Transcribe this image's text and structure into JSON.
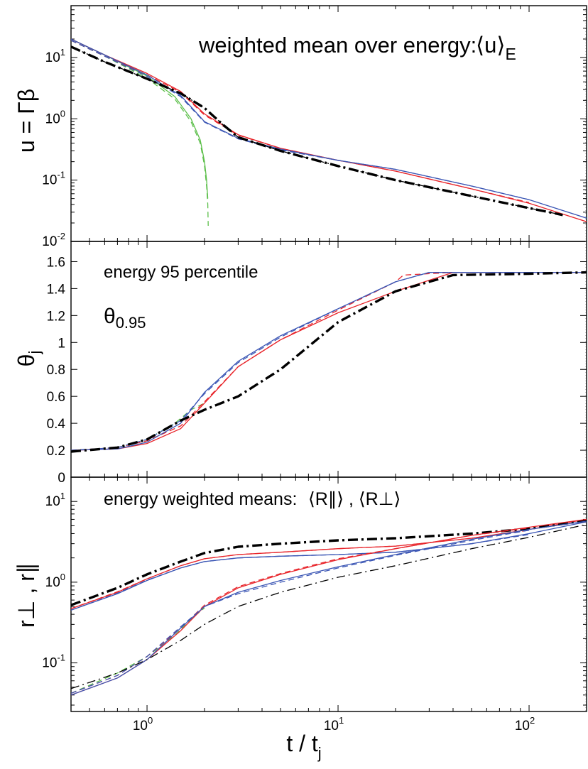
{
  "figure": {
    "xlabel": "t / t",
    "xlabel_sub": "j"
  },
  "chart_data": [
    {
      "type": "line",
      "panel": "top",
      "title": "weighted mean over energy:",
      "annotation_main": "⟨u⟩",
      "annotation_sub": "E",
      "ylabel": "u = Γβ",
      "xscale": "log",
      "yscale": "log",
      "xlim": [
        0.4,
        200
      ],
      "ylim": [
        0.01,
        70
      ],
      "xticks": [
        "10^0",
        "10^1",
        "10^2"
      ],
      "yticks": [
        "10^-2",
        "10^-1",
        "10^0",
        "10^1"
      ],
      "colors": {
        "red": "#e8242a",
        "blue": "#3a55b4",
        "green": "#5cbf4a",
        "black": "#000000"
      },
      "series": [
        {
          "color": "green",
          "dash": "solid",
          "x": [
            0.4,
            0.6,
            1.0,
            1.4,
            1.7,
            1.9,
            2.0,
            2.05,
            2.08
          ],
          "y": [
            20,
            11,
            5.0,
            2.3,
            1.0,
            0.45,
            0.2,
            0.1,
            0.05
          ]
        },
        {
          "color": "green",
          "dash": "dashed",
          "x": [
            0.4,
            0.6,
            1.0,
            1.4,
            1.7,
            1.9,
            2.0,
            2.05,
            2.08,
            2.09
          ],
          "y": [
            19,
            10.5,
            4.6,
            2.1,
            0.9,
            0.4,
            0.17,
            0.08,
            0.04,
            0.018
          ]
        },
        {
          "color": "red",
          "dash": "solid",
          "x": [
            0.4,
            0.6,
            1.0,
            1.5,
            2.0,
            3.0,
            5.0,
            10,
            20,
            50,
            100,
            200
          ],
          "y": [
            20,
            11,
            5.5,
            2.8,
            1.2,
            0.55,
            0.33,
            0.21,
            0.14,
            0.072,
            0.042,
            0.021
          ]
        },
        {
          "color": "red",
          "dash": "dashed",
          "x": [
            0.4,
            0.6,
            1.0,
            1.5,
            2.0,
            3.0,
            5.0,
            10,
            20,
            50,
            100
          ],
          "y": [
            19,
            10.5,
            5.2,
            2.7,
            1.15,
            0.54,
            0.33,
            0.21,
            0.14,
            0.072,
            0.043
          ]
        },
        {
          "color": "blue",
          "dash": "solid",
          "x": [
            0.4,
            0.6,
            1.0,
            1.5,
            2.0,
            3.0,
            5.0,
            10,
            20,
            50,
            100,
            200
          ],
          "y": [
            20,
            11,
            5.2,
            2.4,
            0.9,
            0.48,
            0.32,
            0.21,
            0.15,
            0.08,
            0.048,
            0.024
          ]
        },
        {
          "color": "blue",
          "dash": "dashed",
          "x": [
            0.4,
            0.6,
            1.0,
            1.5,
            2.0,
            3.0,
            5.0,
            10,
            20,
            50,
            100
          ],
          "y": [
            19,
            10.5,
            4.9,
            2.3,
            0.88,
            0.47,
            0.31,
            0.21,
            0.15,
            0.08,
            0.048
          ]
        },
        {
          "color": "black",
          "dash": "dashdot",
          "width": "thick",
          "x": [
            0.4,
            0.6,
            1.0,
            1.5,
            2.0,
            2.5,
            3.0,
            5.0,
            10,
            20,
            50,
            100,
            150
          ],
          "y": [
            15,
            8.5,
            4.5,
            2.6,
            1.5,
            0.8,
            0.5,
            0.3,
            0.17,
            0.1,
            0.055,
            0.035,
            0.027
          ]
        },
        {
          "color": "black",
          "dash": "dashdot",
          "width": "thin",
          "x": [
            0.4,
            0.6,
            1.0,
            1.5,
            2.0,
            2.5,
            3.0,
            5.0,
            10,
            20,
            50,
            100,
            150
          ],
          "y": [
            15,
            8.5,
            4.5,
            2.6,
            1.5,
            0.8,
            0.5,
            0.3,
            0.17,
            0.1,
            0.055,
            0.035,
            0.027
          ]
        }
      ]
    },
    {
      "type": "line",
      "panel": "middle",
      "title": "energy 95 percentile",
      "annotation_main": "θ",
      "annotation_sub": "0.95",
      "ylabel": "θ",
      "ylabel_sub": "j",
      "xscale": "log",
      "yscale": "linear",
      "xlim": [
        0.4,
        200
      ],
      "ylim": [
        0,
        1.75
      ],
      "yticks": [
        "0",
        "0.2",
        "0.4",
        "0.6",
        "0.8",
        "1",
        "1.2",
        "1.4",
        "1.6"
      ],
      "series": [
        {
          "color": "green",
          "dash": "dashed",
          "x": [
            0.4,
            0.7,
            1.0,
            1.4,
            1.7,
            2.0
          ],
          "y": [
            0.2,
            0.22,
            0.28,
            0.4,
            0.5,
            0.55
          ]
        },
        {
          "color": "red",
          "dash": "solid",
          "x": [
            0.4,
            0.7,
            1.0,
            1.5,
            2.0,
            3.0,
            5.0,
            10,
            20,
            40,
            100,
            200
          ],
          "y": [
            0.2,
            0.21,
            0.25,
            0.36,
            0.55,
            0.82,
            1.02,
            1.22,
            1.38,
            1.52,
            1.52,
            1.52
          ]
        },
        {
          "color": "red",
          "dash": "dashed",
          "x": [
            0.4,
            0.7,
            1.0,
            1.5,
            2.0,
            3.0,
            5.0,
            10,
            20,
            22,
            40,
            100
          ],
          "y": [
            0.2,
            0.22,
            0.27,
            0.38,
            0.56,
            0.82,
            1.02,
            1.24,
            1.45,
            1.5,
            1.52,
            1.52
          ]
        },
        {
          "color": "blue",
          "dash": "solid",
          "x": [
            0.4,
            0.7,
            1.0,
            1.5,
            2.0,
            3.0,
            5.0,
            10,
            20,
            30,
            100,
            200
          ],
          "y": [
            0.2,
            0.21,
            0.26,
            0.4,
            0.63,
            0.86,
            1.05,
            1.25,
            1.45,
            1.52,
            1.52,
            1.52
          ]
        },
        {
          "color": "blue",
          "dash": "dashed",
          "x": [
            0.4,
            0.7,
            1.0,
            1.5,
            2.0,
            3.0,
            5.0,
            10,
            20,
            30,
            100
          ],
          "y": [
            0.2,
            0.22,
            0.28,
            0.42,
            0.62,
            0.85,
            1.04,
            1.25,
            1.45,
            1.52,
            1.52
          ]
        },
        {
          "color": "black",
          "dash": "dashdot",
          "width": "thick",
          "x": [
            0.4,
            0.7,
            1.0,
            1.5,
            2.0,
            3.0,
            5.0,
            10,
            20,
            40,
            100,
            200
          ],
          "y": [
            0.19,
            0.22,
            0.28,
            0.42,
            0.5,
            0.6,
            0.8,
            1.15,
            1.38,
            1.5,
            1.51,
            1.52
          ]
        }
      ]
    },
    {
      "type": "line",
      "panel": "bottom",
      "title": "energy weighted means:",
      "annotation_main": "⟨R∥⟩ , ⟨R⊥⟩",
      "ylabel": "r⊥ ,  r∥",
      "xscale": "log",
      "yscale": "log",
      "xlim": [
        0.4,
        200
      ],
      "ylim": [
        0.025,
        20
      ],
      "yticks": [
        "10^-1",
        "10^0",
        "10^1"
      ],
      "series": [
        {
          "color": "red",
          "dash": "solid",
          "x": [
            0.4,
            0.7,
            1.0,
            1.5,
            2.0,
            3.0,
            5.0,
            10,
            20,
            50,
            100,
            200
          ],
          "y": [
            0.47,
            0.75,
            1.1,
            1.6,
            1.95,
            2.2,
            2.35,
            2.6,
            2.8,
            3.5,
            4.5,
            6.0
          ]
        },
        {
          "color": "red",
          "dash": "dashed",
          "x": [
            0.4,
            0.7,
            1.0,
            1.5,
            2.0,
            3.0,
            5.0,
            10,
            20,
            50,
            100
          ],
          "y": [
            0.47,
            0.76,
            1.1,
            1.6,
            1.95,
            2.2,
            2.35,
            2.6,
            2.8,
            3.5,
            4.4
          ]
        },
        {
          "color": "blue",
          "dash": "solid",
          "x": [
            0.4,
            0.7,
            1.0,
            1.5,
            2.0,
            3.0,
            5.0,
            10,
            20,
            50,
            100,
            200
          ],
          "y": [
            0.45,
            0.72,
            1.05,
            1.5,
            1.8,
            2.0,
            2.1,
            2.2,
            2.35,
            3.0,
            4.0,
            5.6
          ]
        },
        {
          "color": "blue",
          "dash": "dashed",
          "x": [
            0.4,
            0.7,
            1.0,
            1.5,
            2.0,
            3.0,
            5.0,
            10,
            20,
            50,
            100
          ],
          "y": [
            0.45,
            0.73,
            1.06,
            1.5,
            1.8,
            2.0,
            2.1,
            2.2,
            2.35,
            3.0,
            3.9
          ]
        },
        {
          "color": "black",
          "dash": "dashdot",
          "width": "thick",
          "x": [
            0.4,
            0.7,
            1.0,
            1.5,
            2.0,
            3.0,
            5.0,
            10,
            20,
            50,
            100,
            200
          ],
          "y": [
            0.52,
            0.85,
            1.25,
            1.8,
            2.3,
            2.75,
            3.0,
            3.3,
            3.5,
            4.0,
            4.6,
            5.8
          ]
        },
        {
          "color": "green",
          "dash": "dashed",
          "x": [
            0.4,
            0.7,
            1.0,
            1.4,
            1.7,
            2.0
          ],
          "y": [
            0.042,
            0.075,
            0.12,
            0.22,
            0.35,
            0.48
          ]
        },
        {
          "color": "red",
          "dash": "solid",
          "x": [
            0.4,
            0.7,
            1.0,
            1.5,
            2.0,
            3.0,
            5.0,
            10,
            20,
            50,
            100,
            200
          ],
          "y": [
            0.04,
            0.065,
            0.11,
            0.25,
            0.5,
            0.85,
            1.25,
            1.9,
            2.6,
            3.8,
            4.8,
            6.0
          ]
        },
        {
          "color": "red",
          "dash": "dashed",
          "x": [
            0.4,
            0.7,
            1.0,
            1.5,
            2.0,
            3.0,
            5.0,
            10,
            20,
            50,
            100
          ],
          "y": [
            0.042,
            0.07,
            0.12,
            0.27,
            0.52,
            0.88,
            1.28,
            1.95,
            2.6,
            3.8,
            4.7
          ]
        },
        {
          "color": "blue",
          "dash": "solid",
          "x": [
            0.4,
            0.7,
            1.0,
            1.5,
            2.0,
            3.0,
            5.0,
            10,
            20,
            50,
            100,
            200
          ],
          "y": [
            0.04,
            0.065,
            0.11,
            0.27,
            0.5,
            0.75,
            1.05,
            1.55,
            2.2,
            3.4,
            4.5,
            5.7
          ]
        },
        {
          "color": "blue",
          "dash": "dashed",
          "x": [
            0.4,
            0.7,
            1.0,
            1.5,
            2.0,
            3.0,
            5.0,
            10,
            20,
            50,
            100
          ],
          "y": [
            0.042,
            0.07,
            0.12,
            0.28,
            0.5,
            0.72,
            1.0,
            1.5,
            2.15,
            3.3,
            4.4
          ]
        },
        {
          "color": "black",
          "dash": "dashdot",
          "width": "thin",
          "x": [
            0.4,
            0.7,
            1.0,
            1.5,
            2.0,
            3.0,
            5.0,
            10,
            20,
            50,
            100,
            200
          ],
          "y": [
            0.048,
            0.075,
            0.11,
            0.19,
            0.3,
            0.5,
            0.75,
            1.15,
            1.6,
            2.6,
            3.6,
            5.2
          ]
        }
      ]
    }
  ]
}
